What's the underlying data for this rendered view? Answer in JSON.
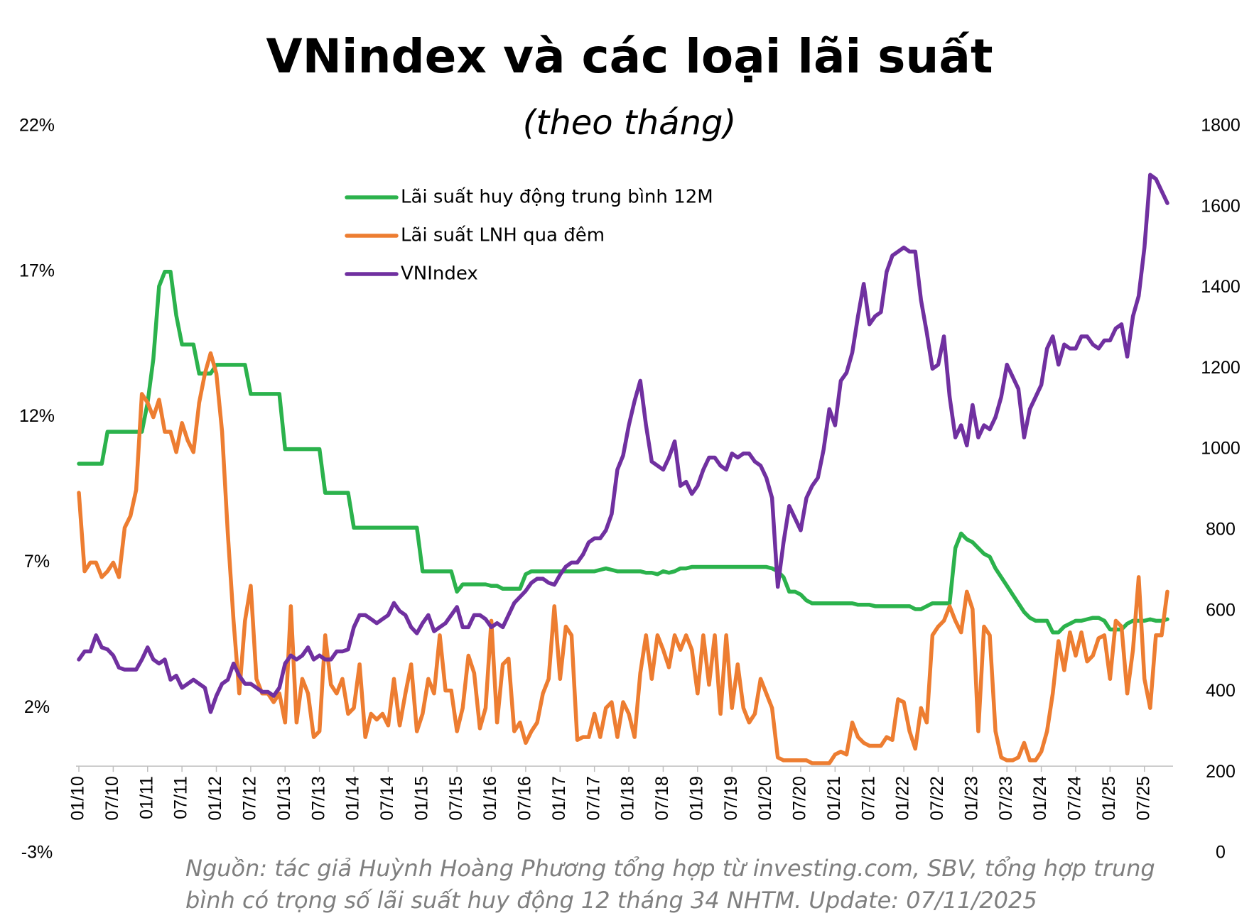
{
  "chart_data": {
    "type": "line",
    "title": "VNindex và các loại lãi suất",
    "subtitle": "(theo tháng)",
    "source": [
      "Nguồn: tác giả Huỳnh Hoàng Phương tổng hợp từ investing.com, SBV, tổng hợp trung",
      "bình có trọng số lãi suất huy động 12 tháng 34 NHTM. Update: 07/11/2025"
    ],
    "categories": [
      "01/10",
      null,
      null,
      null,
      null,
      null,
      "07/10",
      null,
      null,
      null,
      null,
      null,
      "01/11",
      null,
      null,
      null,
      null,
      null,
      "07/11",
      null,
      null,
      null,
      null,
      null,
      "01/12",
      null,
      null,
      null,
      null,
      null,
      "07/12",
      null,
      null,
      null,
      null,
      null,
      "01/13",
      null,
      null,
      null,
      null,
      null,
      "07/13",
      null,
      null,
      null,
      null,
      null,
      "01/14",
      null,
      null,
      null,
      null,
      null,
      "07/14",
      null,
      null,
      null,
      null,
      null,
      "01/15",
      null,
      null,
      null,
      null,
      null,
      "07/15",
      null,
      null,
      null,
      null,
      null,
      "01/16",
      null,
      null,
      null,
      null,
      null,
      "07/16",
      null,
      null,
      null,
      null,
      null,
      "01/17",
      null,
      null,
      null,
      null,
      null,
      "07/17",
      null,
      null,
      null,
      null,
      null,
      "01/18",
      null,
      null,
      null,
      null,
      null,
      "07/18",
      null,
      null,
      null,
      null,
      null,
      "01/19",
      null,
      null,
      null,
      null,
      null,
      "07/19",
      null,
      null,
      null,
      null,
      null,
      "01/20",
      null,
      null,
      null,
      null,
      null,
      "07/20",
      null,
      null,
      null,
      null,
      null,
      "01/21",
      null,
      null,
      null,
      null,
      null,
      "07/21",
      null,
      null,
      null,
      null,
      null,
      "01/22",
      null,
      null,
      null,
      null,
      null,
      "07/22",
      null,
      null,
      null,
      null,
      null,
      "01/23",
      null,
      null,
      null,
      null,
      null,
      "07/23",
      null,
      null,
      null,
      null,
      null,
      "01/24",
      null,
      null,
      null,
      null,
      null,
      "07/24",
      null,
      null,
      null,
      null,
      null,
      "01/25",
      null,
      null,
      null,
      null,
      null,
      "07/25",
      null,
      null,
      null,
      null
    ],
    "series": [
      {
        "name": "Lãi suất huy động trung bình 12M",
        "color": "#2bb24c",
        "axis": "y",
        "values": [
          10.4,
          10.4,
          10.4,
          10.4,
          10.4,
          11.5,
          11.5,
          11.5,
          11.5,
          11.5,
          11.5,
          11.5,
          12.5,
          14.0,
          16.5,
          17.0,
          17.0,
          15.5,
          14.5,
          14.5,
          14.5,
          13.5,
          13.5,
          13.5,
          13.8,
          13.8,
          13.8,
          13.8,
          13.8,
          13.8,
          12.8,
          12.8,
          12.8,
          12.8,
          12.8,
          12.8,
          10.9,
          10.9,
          10.9,
          10.9,
          10.9,
          10.9,
          10.9,
          9.4,
          9.4,
          9.4,
          9.4,
          9.4,
          8.2,
          8.2,
          8.2,
          8.2,
          8.2,
          8.2,
          8.2,
          8.2,
          8.2,
          8.2,
          8.2,
          8.2,
          6.7,
          6.7,
          6.7,
          6.7,
          6.7,
          6.7,
          6.0,
          6.25,
          6.25,
          6.25,
          6.25,
          6.25,
          6.2,
          6.2,
          6.1,
          6.1,
          6.1,
          6.1,
          6.6,
          6.7,
          6.7,
          6.7,
          6.7,
          6.7,
          6.7,
          6.7,
          6.7,
          6.7,
          6.7,
          6.7,
          6.7,
          6.75,
          6.8,
          6.75,
          6.7,
          6.7,
          6.7,
          6.7,
          6.7,
          6.65,
          6.65,
          6.6,
          6.7,
          6.65,
          6.7,
          6.8,
          6.8,
          6.85,
          6.85,
          6.85,
          6.85,
          6.85,
          6.85,
          6.85,
          6.85,
          6.85,
          6.85,
          6.85,
          6.85,
          6.85,
          6.85,
          6.8,
          6.7,
          6.5,
          6.0,
          6.0,
          5.9,
          5.7,
          5.6,
          5.6,
          5.6,
          5.6,
          5.6,
          5.6,
          5.6,
          5.6,
          5.55,
          5.55,
          5.55,
          5.5,
          5.5,
          5.5,
          5.5,
          5.5,
          5.5,
          5.5,
          5.4,
          5.4,
          5.5,
          5.6,
          5.6,
          5.6,
          5.6,
          7.5,
          8.0,
          7.8,
          7.7,
          7.5,
          7.3,
          7.2,
          6.8,
          6.5,
          6.2,
          5.9,
          5.6,
          5.3,
          5.1,
          5.0,
          5.0,
          5.0,
          4.6,
          4.6,
          4.8,
          4.9,
          5.0,
          5.0,
          5.05,
          5.1,
          5.1,
          5.0,
          4.7,
          4.7,
          4.7,
          4.9,
          5.0,
          5.0,
          5.0,
          5.05,
          5.0,
          5.0,
          5.05
        ]
      },
      {
        "name": "Lãi suất LNH qua đêm",
        "color": "#ed7d31",
        "axis": "y",
        "values": [
          9.4,
          6.7,
          7.0,
          7.0,
          6.5,
          6.7,
          7.0,
          6.5,
          8.2,
          8.6,
          9.5,
          12.8,
          12.5,
          12.0,
          12.6,
          11.5,
          11.5,
          10.8,
          11.8,
          11.2,
          10.8,
          12.5,
          13.5,
          14.2,
          13.5,
          11.5,
          8.0,
          5.0,
          2.5,
          5.0,
          6.2,
          3.0,
          2.5,
          2.5,
          2.2,
          2.5,
          1.5,
          5.5,
          1.5,
          3.0,
          2.5,
          1.0,
          1.2,
          4.5,
          2.8,
          2.5,
          3.0,
          1.8,
          2.0,
          3.5,
          1.0,
          1.8,
          1.6,
          1.8,
          1.4,
          3.0,
          1.4,
          2.5,
          3.5,
          1.2,
          1.8,
          3.0,
          2.5,
          4.5,
          2.6,
          2.6,
          1.2,
          2.0,
          3.8,
          3.2,
          1.3,
          2.0,
          5.0,
          1.5,
          3.5,
          3.7,
          1.2,
          1.5,
          0.8,
          1.2,
          1.5,
          2.5,
          3.0,
          5.5,
          3.0,
          4.8,
          4.5,
          0.9,
          1.0,
          1.0,
          1.8,
          1.0,
          2.0,
          2.2,
          1.0,
          2.2,
          1.8,
          1.0,
          3.2,
          4.5,
          3.0,
          4.5,
          4.0,
          3.4,
          4.5,
          4.0,
          4.5,
          4.0,
          2.5,
          4.5,
          2.8,
          4.5,
          1.8,
          4.5,
          2.0,
          3.5,
          2.0,
          1.5,
          1.8,
          3.0,
          2.5,
          2.0,
          0.3,
          0.2,
          0.2,
          0.2,
          0.2,
          0.2,
          0.1,
          0.1,
          0.1,
          0.1,
          0.4,
          0.5,
          0.4,
          1.5,
          1.0,
          0.8,
          0.7,
          0.7,
          0.7,
          1.0,
          0.9,
          2.3,
          2.2,
          1.2,
          0.6,
          2.0,
          1.5,
          4.5,
          4.8,
          5.0,
          5.5,
          5.0,
          4.6,
          6.0,
          5.4,
          1.2,
          4.8,
          4.5,
          1.2,
          0.3,
          0.2,
          0.2,
          0.3,
          0.8,
          0.2,
          0.2,
          0.5,
          1.2,
          2.5,
          4.3,
          3.3,
          4.6,
          3.8,
          4.6,
          3.6,
          3.8,
          4.4,
          4.5,
          3.0,
          5.0,
          4.8,
          2.5,
          4.0,
          6.5,
          3.0,
          2.0,
          4.5,
          4.5,
          6.0
        ]
      },
      {
        "name": "VNIndex",
        "color": "#7030a0",
        "axis": "y2",
        "values": [
          480,
          500,
          500,
          540,
          510,
          505,
          490,
          460,
          455,
          455,
          455,
          480,
          510,
          480,
          470,
          480,
          430,
          440,
          410,
          420,
          430,
          420,
          410,
          350,
          390,
          420,
          430,
          470,
          440,
          420,
          420,
          410,
          400,
          400,
          390,
          410,
          470,
          490,
          480,
          490,
          510,
          480,
          490,
          480,
          480,
          500,
          500,
          505,
          560,
          590,
          590,
          580,
          570,
          580,
          590,
          620,
          600,
          590,
          560,
          545,
          570,
          590,
          550,
          560,
          570,
          590,
          610,
          560,
          560,
          590,
          590,
          580,
          560,
          570,
          560,
          590,
          620,
          635,
          650,
          670,
          680,
          680,
          670,
          665,
          690,
          710,
          720,
          720,
          740,
          770,
          780,
          780,
          800,
          840,
          950,
          985,
          1060,
          1120,
          1170,
          1060,
          970,
          960,
          950,
          980,
          1020,
          910,
          920,
          890,
          910,
          950,
          980,
          980,
          960,
          950,
          990,
          980,
          990,
          990,
          970,
          960,
          930,
          880,
          660,
          770,
          860,
          830,
          800,
          880,
          910,
          930,
          1000,
          1100,
          1060,
          1170,
          1190,
          1240,
          1330,
          1410,
          1310,
          1330,
          1340,
          1440,
          1480,
          1490,
          1500,
          1490,
          1490,
          1370,
          1290,
          1200,
          1210,
          1280,
          1130,
          1030,
          1060,
          1010,
          1110,
          1030,
          1060,
          1050,
          1080,
          1130,
          1210,
          1180,
          1150,
          1030,
          1100,
          1130,
          1160,
          1250,
          1280,
          1210,
          1260,
          1250,
          1250,
          1280,
          1280,
          1260,
          1250,
          1270,
          1270,
          1300,
          1310,
          1230,
          1330,
          1380,
          1500,
          1680,
          1670,
          1640,
          1610
        ]
      }
    ],
    "ylim": [
      -3,
      22
    ],
    "yticks": [
      {
        "value": -3,
        "label": "-3%"
      },
      {
        "value": 2,
        "label": "2%"
      },
      {
        "value": 7,
        "label": "7%"
      },
      {
        "value": 12,
        "label": "12%"
      },
      {
        "value": 17,
        "label": "17%"
      },
      {
        "value": 22,
        "label": "22%"
      }
    ],
    "y2lim": [
      0,
      1800
    ],
    "y2ticks": [
      0,
      200,
      400,
      600,
      800,
      1000,
      1200,
      1400,
      1600,
      1800
    ],
    "grid": false,
    "legend": "top-left"
  }
}
